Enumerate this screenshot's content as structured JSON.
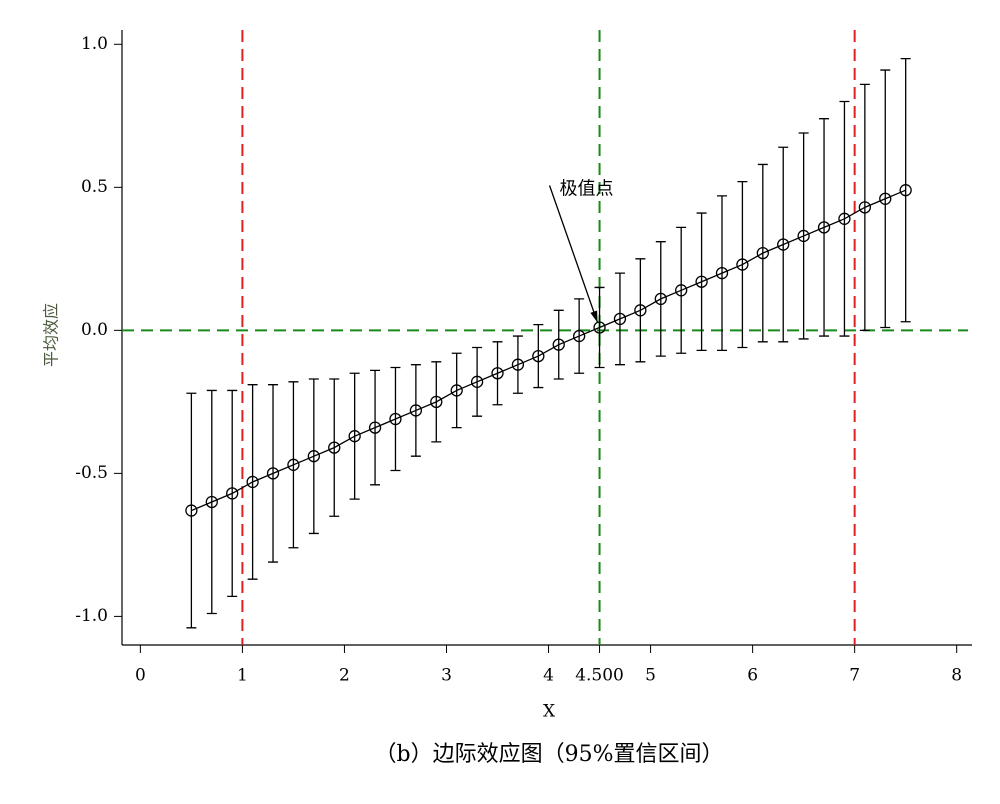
{
  "chart_data": {
    "type": "errorbar",
    "ylabel": "平均效应",
    "xlabel": "X",
    "caption": "（b）边际效应图（95%置信区间）",
    "x": [
      0.5,
      0.7,
      0.9,
      1.1,
      1.3,
      1.5,
      1.7,
      1.9,
      2.1,
      2.3,
      2.5,
      2.7,
      2.9,
      3.1,
      3.3,
      3.5,
      3.7,
      3.9,
      4.1,
      4.3,
      4.5,
      4.7,
      4.9,
      5.1,
      5.3,
      5.5,
      5.7,
      5.9,
      6.1,
      6.3,
      6.5,
      6.7,
      6.9,
      7.1,
      7.3,
      7.5
    ],
    "values": [
      -0.63,
      -0.6,
      -0.57,
      -0.53,
      -0.5,
      -0.47,
      -0.44,
      -0.41,
      -0.37,
      -0.34,
      -0.31,
      -0.28,
      -0.25,
      -0.21,
      -0.18,
      -0.15,
      -0.12,
      -0.09,
      -0.05,
      -0.02,
      0.01,
      0.04,
      0.07,
      0.11,
      0.14,
      0.17,
      0.2,
      0.23,
      0.27,
      0.3,
      0.33,
      0.36,
      0.39,
      0.43,
      0.46,
      0.49
    ],
    "errors": [
      0.41,
      0.39,
      0.36,
      0.34,
      0.31,
      0.29,
      0.27,
      0.24,
      0.22,
      0.2,
      0.18,
      0.16,
      0.14,
      0.13,
      0.12,
      0.11,
      0.1,
      0.11,
      0.12,
      0.13,
      0.14,
      0.16,
      0.18,
      0.2,
      0.22,
      0.24,
      0.27,
      0.29,
      0.31,
      0.34,
      0.36,
      0.38,
      0.41,
      0.43,
      0.45,
      0.46
    ],
    "color": "#000000",
    "xlim": [
      -0.18,
      8.15
    ],
    "ylim": [
      -1.1,
      1.05
    ],
    "xticks": [
      0,
      1,
      2,
      3,
      4,
      {
        "value": 4.5,
        "label": "4.500"
      },
      5,
      6,
      7,
      8
    ],
    "yticks": [
      {
        "value": -1,
        "label": "-1.0"
      },
      -0.5,
      {
        "value": 0,
        "label": "0.0"
      },
      0.5,
      {
        "value": 1,
        "label": "1.0"
      }
    ],
    "vlines": [
      {
        "value": 1,
        "color": "#e02020"
      },
      {
        "value": 4.5,
        "color": "#1a8a1a"
      },
      {
        "value": 7,
        "color": "#e02020"
      }
    ],
    "hlines": [
      {
        "value": 0,
        "color": "#1a8a1a"
      }
    ],
    "annotation": {
      "text": "极值点",
      "x": 4.5,
      "y": 0.01
    }
  }
}
